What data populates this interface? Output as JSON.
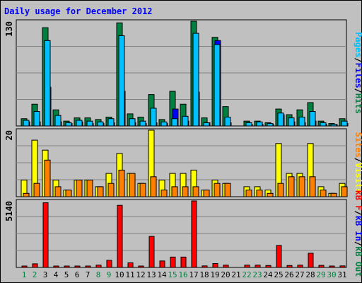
{
  "title": "Daily usage for December 2012",
  "chart_data": [
    {
      "type": "bar",
      "panel": "hits-files-pages",
      "ylim": [
        0,
        130
      ],
      "scale_label": "130",
      "right_label": [
        {
          "text": "Pages",
          "color": "#00c0ff"
        },
        {
          "text": "/",
          "color": "#000000"
        },
        {
          "text": "Files",
          "color": "#0000ff"
        },
        {
          "text": "/",
          "color": "#000000"
        },
        {
          "text": "Hits",
          "color": "#008040"
        }
      ],
      "categories": [
        "1",
        "2",
        "3",
        "4",
        "5",
        "6",
        "7",
        "8",
        "9",
        "10",
        "11",
        "12",
        "13",
        "14",
        "15",
        "16",
        "17",
        "18",
        "19",
        "20",
        "21",
        "22",
        "23",
        "24",
        "25",
        "26",
        "27",
        "28",
        "29",
        "30",
        "31"
      ],
      "series": [
        {
          "name": "Hits",
          "color": "#008040",
          "values": [
            9,
            27,
            122,
            20,
            6,
            10,
            10,
            8,
            11,
            128,
            15,
            11,
            39,
            8,
            43,
            27,
            130,
            10,
            110,
            24,
            0,
            6,
            6,
            4,
            21,
            14,
            20,
            29,
            6,
            3,
            9
          ]
        },
        {
          "name": "Files",
          "color": "#0000ff",
          "values": [
            5,
            5,
            48,
            5,
            3,
            5,
            3,
            3,
            4,
            43,
            4,
            3,
            4,
            3,
            21,
            6,
            42,
            4,
            106,
            4,
            0,
            2,
            2,
            2,
            14,
            5,
            4,
            6,
            2,
            1,
            3
          ]
        },
        {
          "name": "Pages",
          "color": "#00c0ff",
          "values": [
            7,
            18,
            106,
            13,
            4,
            7,
            6,
            5,
            9,
            112,
            9,
            6,
            22,
            5,
            9,
            12,
            115,
            4,
            101,
            11,
            0,
            4,
            5,
            3,
            16,
            10,
            11,
            18,
            4,
            2,
            6
          ]
        }
      ]
    },
    {
      "type": "bar",
      "panel": "visits-sites",
      "ylim": [
        0,
        20
      ],
      "scale_label": "20",
      "right_label": [
        {
          "text": "Sites",
          "color": "#ff8000"
        },
        {
          "text": "/",
          "color": "#000000"
        },
        {
          "text": "Visits",
          "color": "#ffff00"
        }
      ],
      "categories": [
        "1",
        "2",
        "3",
        "4",
        "5",
        "6",
        "7",
        "8",
        "9",
        "10",
        "11",
        "12",
        "13",
        "14",
        "15",
        "16",
        "17",
        "18",
        "19",
        "20",
        "21",
        "22",
        "23",
        "24",
        "25",
        "26",
        "27",
        "28",
        "29",
        "30",
        "31"
      ],
      "series": [
        {
          "name": "Visits",
          "color": "#ffff00",
          "values": [
            5,
            17,
            14,
            5,
            2,
            5,
            5,
            3,
            7,
            13,
            7,
            4,
            20,
            5,
            7,
            7,
            8,
            2,
            5,
            4,
            0,
            3,
            3,
            2,
            16,
            7,
            7,
            16,
            3,
            1,
            4
          ]
        },
        {
          "name": "Sites",
          "color": "#ff8000",
          "values": [
            1,
            4,
            11,
            3,
            2,
            5,
            5,
            3,
            4,
            8,
            7,
            4,
            6,
            2,
            3,
            3,
            3,
            2,
            4,
            4,
            0,
            2,
            2,
            1,
            4,
            6,
            6,
            6,
            2,
            1,
            3
          ]
        }
      ]
    },
    {
      "type": "bar",
      "panel": "kbytes",
      "ylim": [
        0,
        5140
      ],
      "scale_label": "5140",
      "right_label": [
        {
          "text": "kB F",
          "color": "#ff0000"
        },
        {
          "text": "/",
          "color": "#000000"
        },
        {
          "text": "kB In",
          "color": "#0000ff"
        },
        {
          "text": "/",
          "color": "#000000"
        },
        {
          "text": "kB Out",
          "color": "#008040"
        }
      ],
      "categories": [
        "1",
        "2",
        "3",
        "4",
        "5",
        "6",
        "7",
        "8",
        "9",
        "10",
        "11",
        "12",
        "13",
        "14",
        "15",
        "16",
        "17",
        "18",
        "19",
        "20",
        "21",
        "22",
        "23",
        "24",
        "25",
        "26",
        "27",
        "28",
        "29",
        "30",
        "31"
      ],
      "series": [
        {
          "name": "kB F",
          "color": "#ff0000",
          "values": [
            100,
            280,
            5000,
            80,
            80,
            80,
            80,
            180,
            550,
            4800,
            360,
            100,
            2400,
            500,
            800,
            800,
            5140,
            120,
            300,
            180,
            0,
            180,
            180,
            150,
            1700,
            150,
            180,
            1100,
            160,
            80,
            120
          ]
        }
      ],
      "weekend_days": [
        "1",
        "2",
        "8",
        "9",
        "15",
        "16",
        "22",
        "23",
        "29",
        "30"
      ],
      "weekend_color": "#008040",
      "weekday_color": "#000000"
    }
  ]
}
